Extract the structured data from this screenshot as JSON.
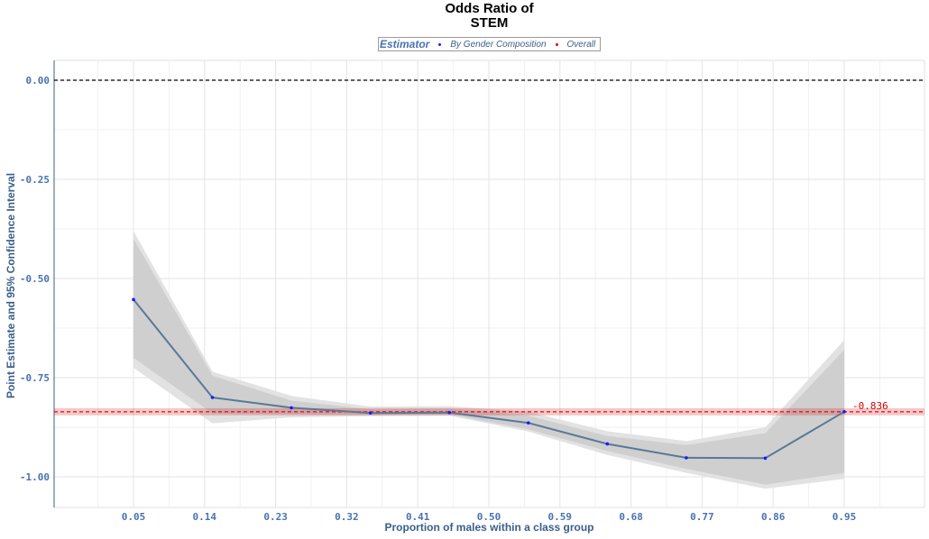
{
  "chart_data": {
    "type": "line",
    "title_line1": "Odds Ratio of",
    "title_line2": "STEM",
    "xlabel": "Proportion of males within a class group",
    "ylabel": "Point Estimate and 95% Confidence Interval",
    "legend": {
      "title": "Estimator",
      "placement": "top",
      "items": [
        {
          "label": "By Gender Composition",
          "color": "#1a1aff"
        },
        {
          "label": "Overall",
          "color": "#e00000"
        }
      ]
    },
    "x_ticks": [
      "0.05",
      "0.14",
      "0.23",
      "0.32",
      "0.41",
      "0.50",
      "0.59",
      "0.68",
      "0.77",
      "0.86",
      "0.95"
    ],
    "y_ticks": [
      "0.00",
      "-0.25",
      "-0.50",
      "-0.75",
      "-1.00"
    ],
    "xlim": [
      0.0,
      1.0
    ],
    "ylim": [
      -1.08,
      0.05
    ],
    "reference_line": {
      "y": 0.0,
      "style": "dashed",
      "color": "#000000"
    },
    "series": [
      {
        "name": "By Gender Composition",
        "x": [
          0.05,
          0.15,
          0.25,
          0.35,
          0.45,
          0.55,
          0.65,
          0.75,
          0.85,
          0.95
        ],
        "y": [
          -0.553,
          -0.8,
          -0.826,
          -0.839,
          -0.838,
          -0.864,
          -0.917,
          -0.952,
          -0.953,
          -0.836
        ],
        "ci90_low": [
          -0.7,
          -0.84,
          -0.842,
          -0.844,
          -0.843,
          -0.88,
          -0.935,
          -0.98,
          -1.02,
          -0.99
        ],
        "ci90_high": [
          -0.4,
          -0.745,
          -0.808,
          -0.83,
          -0.828,
          -0.846,
          -0.897,
          -0.92,
          -0.89,
          -0.68
        ],
        "ci95_low": [
          -0.725,
          -0.865,
          -0.85,
          -0.847,
          -0.846,
          -0.886,
          -0.945,
          -0.99,
          -1.03,
          -1.005
        ],
        "ci95_high": [
          -0.38,
          -0.735,
          -0.796,
          -0.823,
          -0.822,
          -0.836,
          -0.885,
          -0.91,
          -0.875,
          -0.655
        ],
        "line_color": "#5a7898",
        "point_color": "#1a1aff"
      }
    ],
    "overall": {
      "value": -0.836,
      "label": "-0.836",
      "ci_low": -0.845,
      "ci_high": -0.827,
      "color": "#e00000"
    },
    "grid": true
  }
}
